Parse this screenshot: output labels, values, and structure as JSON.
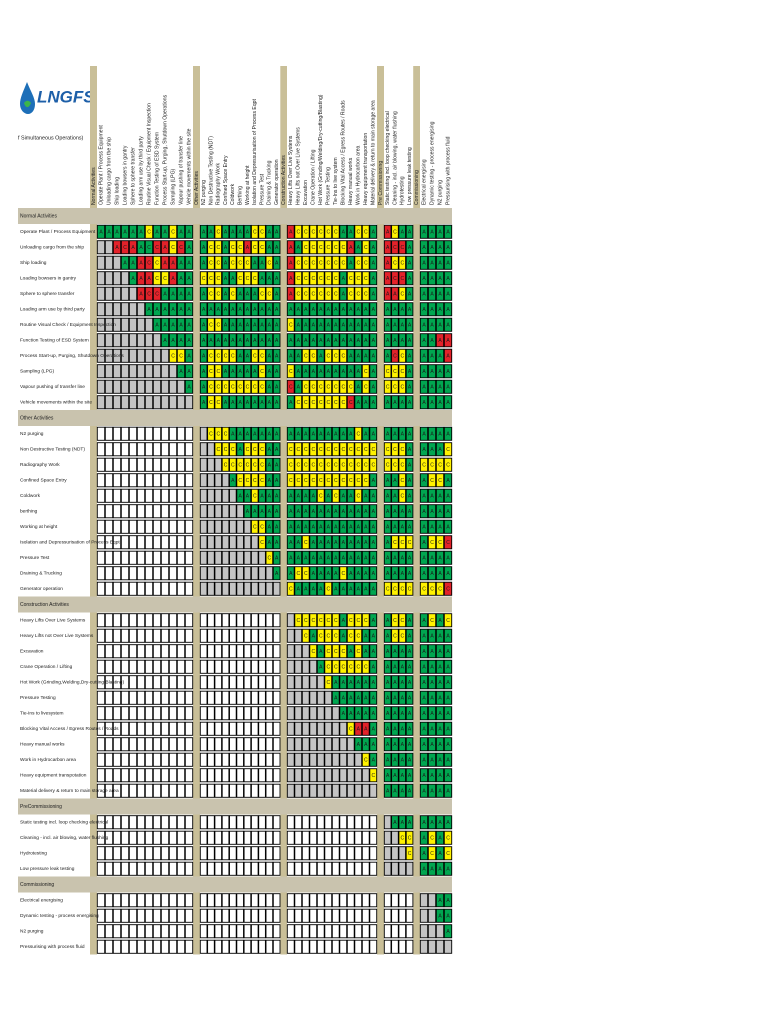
{
  "logo": "LNGFS",
  "title": "f Simultaneous Operations)",
  "palette": {
    "g": "#00a650",
    "y": "#fff200",
    "r": "#e3222a",
    "k": "#c4c4c4",
    "w": "#ffffff"
  },
  "letter_codes": {
    "A": "g",
    "C": "y",
    " ": "k"
  },
  "groups": [
    {
      "title": "Normal Activities",
      "columns": [
        "Operate Plant / Process Equipment",
        "Unloading cargo from the ship",
        "Ship loading",
        "Loading bowsers in gantry",
        "Sphere to sphere transfer",
        "Loading arm use by third party",
        "Routine Visual Check / Equipment Inspection",
        "Function Testing of ESD System",
        "Process Start-up, Purging, Shutdown Operations",
        "Sampling (LPG)",
        "Vapour pushing of transfer line",
        "Vehicle movements within the site"
      ]
    },
    {
      "title": "Other Activities",
      "columns": [
        "N2 purging",
        "Non Destructive Testing (NDT)",
        "Radiography Work",
        "Confined Space Entry",
        "Coldwork",
        "Berthing",
        "Working at height",
        "Isolation and Depressurisation of Process Eqpt",
        "Pressure Test",
        "Draining & Trucking",
        "Generator operation"
      ]
    },
    {
      "title": "Construction Activities",
      "columns": [
        "Heavy Lifts Over Live Systems",
        "Heavy Lifts not Over Live Systems",
        "Excavation",
        "Crane Operation / Lifting",
        "Hot Work (Grinding/Welding/Dry-cutting/Blasting)",
        "Pressure Testing",
        "Tie-Ins to live system",
        "Blocking Vital Access / Egress Routes / Roads",
        "Heavy manual works",
        "Work in Hydrocarbon area",
        "Heavy equipment transportation",
        "Material delivery & return to main storage area"
      ]
    },
    {
      "title": "Pre Commissioning",
      "columns": [
        "Static testing incl. loop checking electrical",
        "Cleaning - incl. air blowing, water flushing",
        "Hydrotesting",
        "Low pressure leak testing"
      ]
    },
    {
      "title": "Commissioning",
      "columns": [
        "Electrical energising",
        "Dynamic testing - process energising",
        "N2 purging",
        "Pressurising with process fluid"
      ]
    }
  ],
  "sections": [
    {
      "title": "Normal Activities",
      "rows": [
        {
          "label": "Operate Plant / Process Equipment",
          "cells": [
            "AAAAAACAACAA",
            "AACAAAACCAA",
            "ACCCCCCAACCA",
            "ACAA",
            "AAAA"
          ],
          "fill": [
            "ggggggyggygg",
            "ggyggggyygg",
            "ryyyyyyggyyg",
            "rygg",
            "gggg"
          ]
        },
        {
          "label": "Unloading cargo from the ship",
          "cells": [
            "  ACAACCACCA",
            "ACCACCACCAA",
            "AACCCCCCAACA",
            "ACCA",
            "AAAA"
          ],
          "fill": [
            "kkrrrggrryrg",
            "gyygyyryygg",
            "rgyyyyyyrgyg",
            "rrrg",
            "gggg"
          ]
        },
        {
          "label": "Ship loading",
          "cells": [
            "   AAACCAAAA",
            "ACCACCCAACA",
            "ACCCCCCCACCA",
            "ACCA",
            "AAAA"
          ],
          "fill": [
            "kkkggrryrrgg",
            "gyygyyyggyg",
            "ryyyyyyygyyg",
            "ryyg",
            "gggg"
          ]
        },
        {
          "label": "Loading bowsers in gantry",
          "cells": [
            "    AAACCAAA",
            "CCCAACCCAAA",
            "ACCCCCCACCCA",
            "ACCA",
            "AAAA"
          ],
          "fill": [
            "kkkkgrryyrgg",
            "yyyggyyyggg",
            "ryyyyyygyyyg",
            "rrrg",
            "gggg"
          ]
        },
        {
          "label": "Sphere to sphere transfer",
          "cells": [
            "     ACCAAAA",
            "ACCACAAACCA",
            "ACCCCCCACCCA",
            "AACA",
            "AAAA"
          ],
          "fill": [
            "kkkkkrrrgggg",
            "gyygygggyyg",
            "ryyyyyygyyyg",
            "rryg",
            "gggg"
          ]
        },
        {
          "label": "Loading arm use by third party",
          "cells": [
            "      AAAAAA",
            "AAAAAAAAAAA",
            "AAAAAAAAAAAA",
            "AAAA",
            "AAAA"
          ]
        },
        {
          "label": "Routine Visual Check / Equipment Inspection",
          "cells": [
            "       AAAAA",
            "ACCAAAAAAAA",
            "CAAAAAAAAAAA",
            "AAAA",
            "AAAA"
          ]
        },
        {
          "label": "Function Testing of ESD System",
          "cells": [
            "        AAAA",
            "AAAAAAAAAAA",
            "AAAAAAAAAAAA",
            "AAAA",
            "AAAA"
          ],
          "fill": [
            "kkkkkkkkgggg",
            "ggggggggggg",
            "gggggggggggg",
            "gggg",
            "ggrr"
          ]
        },
        {
          "label": "Process Start-up, Purging, Shutdown Operations",
          "cells": [
            "         CCA",
            "ACCCCAACCAA",
            "AACCACCCAAAA",
            "ACCA",
            "AAAA"
          ],
          "fill": [
            "kkkkkkkkkyyg",
            "gyyyyggyygg",
            "ggyygyyygggg",
            "gryg",
            "gggr"
          ]
        },
        {
          "label": "Sampling (LPG)",
          "cells": [
            "          AA",
            "ACCAAAAACAA",
            "CAAAAAAAAACA",
            "CCCA",
            "AAAA"
          ]
        },
        {
          "label": "Vapour pushing of transfer line",
          "cells": [
            "           A",
            "ACCCCCCCCAA",
            "CACCCCCCCACA",
            "CCCA",
            "AAAA"
          ],
          "fill": [
            "kkkkkkkkkkkg",
            "gyyyyyyyygg",
            "rgyyyyyyygyg",
            "yyyg",
            "gggg"
          ]
        },
        {
          "label": "Vehicle movements within the site",
          "cells": [
            "            ",
            "ACCAAAAAAAA",
            "ACCCCCCCCAAA",
            "AAAA",
            "AAAA"
          ],
          "fill": [
            "kkkkkkkkkkkk",
            "gyygggggggg",
            "gyyyyyyyrggg",
            "gggg",
            "gggg"
          ]
        }
      ]
    },
    {
      "title": "Other Activities",
      "rows": [
        {
          "label": "N2 purging",
          "cells": [
            " CCCAAAAAAA",
            "AAAAAAAAACAA",
            "AAAA",
            "AAAA"
          ]
        },
        {
          "label": "Non Destructive Testing (NDT)",
          "cells": [
            "  CCCACCCAA",
            "CCCCCCCCCCCC",
            "CCCA",
            "AAAC"
          ]
        },
        {
          "label": "Radiography Work",
          "cells": [
            "   CCCCCCAA",
            "CCCCCCCCCCCC",
            "CCCA",
            "CCCC"
          ]
        },
        {
          "label": "Confined Space Entry",
          "cells": [
            "    ACCCCAA",
            "CCCCCCCCCCCA",
            "AACA",
            "ACCA"
          ]
        },
        {
          "label": "Coldwork",
          "cells": [
            "     AACAAA",
            "AAAACACAACAA",
            "AACA",
            "AAAA"
          ]
        },
        {
          "label": "berthing",
          "cells": [
            "      AAAAA",
            "AAAAAAAAAAAA",
            "AAAA",
            "AAAA"
          ]
        },
        {
          "label": "Working at height",
          "cells": [
            "       CCAA",
            "AAAAAAAAAAAA",
            "AAAA",
            "AAAA"
          ]
        },
        {
          "label": "Isolation and Depressurisation of Process Eqpt",
          "cells": [
            "        CAA",
            "AACAAAAAAAAA",
            "ACCC",
            "ACCC"
          ],
          "fill": [
            "kkkkkkkkygg",
            "ggyggggggggg",
            "gyyy",
            "gyyr"
          ]
        },
        {
          "label": "Pressure Test",
          "cells": [
            "         CA",
            "AAAAAAAAAAAA",
            "AAAA",
            "AAAA"
          ]
        },
        {
          "label": "Draining & Trucking",
          "cells": [
            "          A",
            "ACCAAAACAAAA",
            "AAAA",
            "AAAA"
          ]
        },
        {
          "label": "Generator operation",
          "cells": [
            "           ",
            "CAAAACAAAAAA",
            "CCCC",
            "CCCC"
          ],
          "fill": [
            "kkkkkkkkkkk",
            "yggggygggggg",
            "yyyy",
            "yyyr"
          ]
        }
      ]
    },
    {
      "title": "Construction Activities",
      "rows": [
        {
          "label": "Heavy Lifts Over Live Systems",
          "cells": [
            " CCCCCCACCCA",
            "ACCA",
            "ACAC"
          ]
        },
        {
          "label": "Heavy Lifts not Over Live Systems",
          "cells": [
            "  CACCCACCAA",
            "ACCA",
            "AAAA"
          ]
        },
        {
          "label": "Excavation",
          "cells": [
            "   CACCCACAA",
            "AAAA",
            "AAAA"
          ]
        },
        {
          "label": "Crane Operation / Lifting",
          "cells": [
            "    ACCCCCCA",
            "AAAA",
            "AAAA"
          ]
        },
        {
          "label": "Hot Work (Grinding,Welding,Dry-cutting,Blasting)",
          "cells": [
            "     CAAAAAA",
            "AAAA",
            "AAAA"
          ]
        },
        {
          "label": "Pressure Testing",
          "cells": [
            "      AAAAAA",
            "AAAA",
            "AAAA"
          ]
        },
        {
          "label": "Tie-Ins to livesystem",
          "cells": [
            "       AAAAA",
            "AAAA",
            "AAAA"
          ]
        },
        {
          "label": "Blocking Vital Access / Egress Routes / Roads",
          "cells": [
            "        CAAA",
            "AAAA",
            "AAAA"
          ],
          "fill": [
            "kkkkkkkkyrrg",
            "gggg",
            "gggg"
          ]
        },
        {
          "label": "Heavy manual works",
          "cells": [
            "         AAA",
            "AAAA",
            "AAAA"
          ]
        },
        {
          "label": "Work in Hydrocarbon area",
          "cells": [
            "          CA",
            "AAAA",
            "AAAA"
          ]
        },
        {
          "label": "Heavy equipment transpotation",
          "cells": [
            "           C",
            "AAAA",
            "AAAA"
          ]
        },
        {
          "label": "Material delivery & return to main storage area",
          "cells": [
            "            ",
            "AAAA",
            "AAAA"
          ]
        }
      ]
    },
    {
      "title": "PreCommissioning",
      "rows": [
        {
          "label": "Static testing incl. loop checking electrical",
          "cells": [
            " AAA",
            "AAAA"
          ]
        },
        {
          "label": "Cleaning - incl. air blowing, water flushing",
          "cells": [
            "  CC",
            "ACAC"
          ]
        },
        {
          "label": "Hydrotesting",
          "cells": [
            "   C",
            "ACAC"
          ]
        },
        {
          "label": "Low pressure leak testing",
          "cells": [
            "    ",
            "AAAA"
          ]
        }
      ]
    },
    {
      "title": "Commissioning",
      "rows": [
        {
          "label": "Electrical energising",
          "cells": [
            "  AA"
          ]
        },
        {
          "label": "Dynamic testing - process energising",
          "cells": [
            "  AA"
          ]
        },
        {
          "label": "N2 purging",
          "cells": [
            "   A"
          ]
        },
        {
          "label": "Pressurising with process fluid",
          "cells": [
            "    "
          ]
        }
      ]
    }
  ]
}
